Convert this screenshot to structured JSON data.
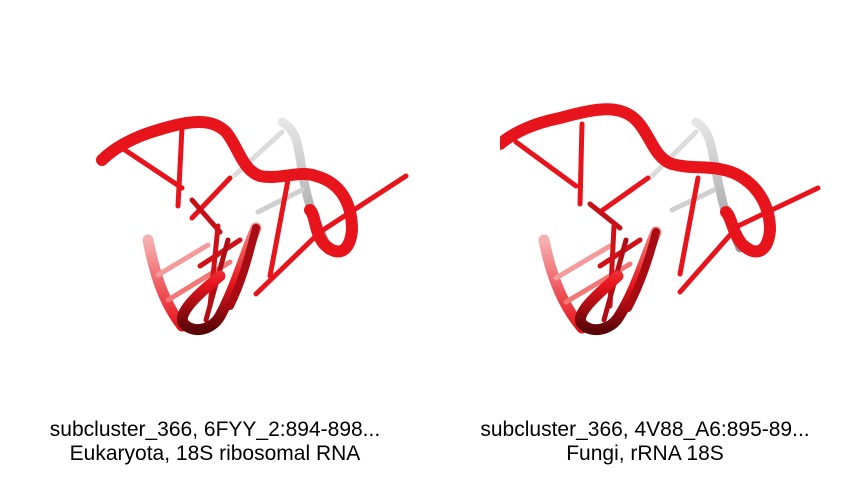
{
  "colors": {
    "backbone": "#e8141c",
    "backbone_dark": "#7a0a0e",
    "backbone_grey": "#c8c8c8",
    "background": "#ffffff"
  },
  "panels": [
    {
      "caption_line1": "subcluster_366, 6FYY_2:894-898...",
      "caption_line2": "Eukaryota, 18S ribosomal RNA"
    },
    {
      "caption_line1": "subcluster_366, 4V88_A6:895-89...",
      "caption_line2": "Fungi, rRNA 18S"
    }
  ]
}
